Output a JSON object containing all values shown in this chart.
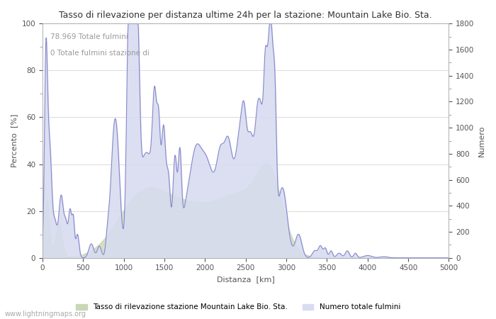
{
  "title": "Tasso di rilevazione per distanza ultime 24h per la stazione: Mountain Lake Bio. Sta.",
  "xlabel": "Distanza  [km]",
  "ylabel_left": "Percento  [%]",
  "ylabel_right": "Numero",
  "annotation_line1": "78.969 Totale fulmini",
  "annotation_line2": "0 Totale fulmini stazione di",
  "legend_label1": "Tasso di rilevazione stazione Mountain Lake Bio. Sta.",
  "legend_label2": "Numero totale fulmini",
  "watermark": "www.lightningmaps.org",
  "xlim": [
    0,
    5000
  ],
  "ylim_left": [
    0,
    100
  ],
  "ylim_right": [
    0,
    1800
  ],
  "xticks": [
    0,
    500,
    1000,
    1500,
    2000,
    2500,
    3000,
    3500,
    4000,
    4500,
    5000
  ],
  "yticks_left": [
    0,
    20,
    40,
    60,
    80,
    100
  ],
  "yticks_right": [
    0,
    200,
    400,
    600,
    800,
    1000,
    1200,
    1400,
    1600,
    1800
  ],
  "fill_color_detection": "#c8d8b4",
  "fill_color_lightning": "#d8dcf0",
  "line_color": "#8888cc",
  "line_width": 0.8,
  "background_color": "#ffffff",
  "grid_color": "#cccccc",
  "annotation_color": "#999999",
  "tick_label_color": "#555555",
  "axis_label_color": "#555555",
  "minor_tick_color": "#999999",
  "figsize": [
    7.0,
    4.5
  ],
  "dpi": 100
}
